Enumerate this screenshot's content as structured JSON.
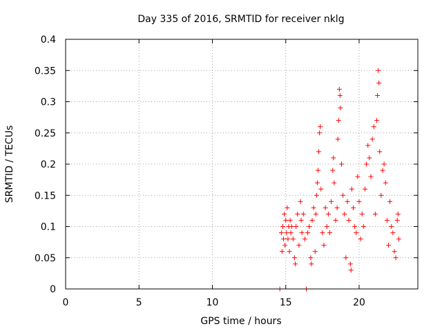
{
  "chart_data": {
    "type": "scatter",
    "title": "Day 335 of 2016, SRMTID for receiver nklg",
    "xlabel": "GPS time / hours",
    "ylabel": "SRMTID / TECUs",
    "xlim": [
      0,
      24
    ],
    "ylim": [
      0,
      0.4
    ],
    "xticks": [
      0,
      5,
      10,
      15,
      20
    ],
    "yticks": [
      0,
      0.05,
      0.1,
      0.15,
      0.2,
      0.25,
      0.3,
      0.35,
      0.4
    ],
    "xtick_labels": [
      "0",
      "5",
      "10",
      "15",
      "20"
    ],
    "ytick_labels": [
      "0",
      "0.05",
      "0.1",
      "0.15",
      "0.2",
      "0.25",
      "0.3",
      "0.35",
      "0.4"
    ],
    "grid": true,
    "marker": "+",
    "series": [
      {
        "name": "SRMTID",
        "color": "#ff0000",
        "points": [
          [
            14.6,
            0.0
          ],
          [
            16.4,
            0.0
          ],
          [
            14.7,
            0.09
          ],
          [
            14.75,
            0.06
          ],
          [
            14.8,
            0.1
          ],
          [
            14.85,
            0.08
          ],
          [
            14.9,
            0.12
          ],
          [
            14.95,
            0.07
          ],
          [
            15.0,
            0.11
          ],
          [
            15.05,
            0.09
          ],
          [
            15.1,
            0.13
          ],
          [
            15.15,
            0.08
          ],
          [
            15.2,
            0.1
          ],
          [
            15.25,
            0.06
          ],
          [
            15.3,
            0.11
          ],
          [
            15.35,
            0.09
          ],
          [
            15.4,
            0.1
          ],
          [
            15.5,
            0.08
          ],
          [
            15.6,
            0.05
          ],
          [
            15.65,
            0.04
          ],
          [
            15.7,
            0.1
          ],
          [
            15.8,
            0.12
          ],
          [
            15.9,
            0.07
          ],
          [
            16.0,
            0.14
          ],
          [
            16.05,
            0.11
          ],
          [
            16.1,
            0.09
          ],
          [
            16.2,
            0.12
          ],
          [
            16.3,
            0.08
          ],
          [
            16.5,
            0.09
          ],
          [
            16.6,
            0.1
          ],
          [
            16.7,
            0.05
          ],
          [
            16.75,
            0.04
          ],
          [
            16.8,
            0.11
          ],
          [
            16.9,
            0.13
          ],
          [
            17.0,
            0.06
          ],
          [
            17.05,
            0.12
          ],
          [
            17.1,
            0.15
          ],
          [
            17.15,
            0.17
          ],
          [
            17.2,
            0.19
          ],
          [
            17.25,
            0.22
          ],
          [
            17.3,
            0.25
          ],
          [
            17.35,
            0.26
          ],
          [
            17.4,
            0.16
          ],
          [
            17.5,
            0.09
          ],
          [
            17.6,
            0.07
          ],
          [
            17.7,
            0.13
          ],
          [
            17.8,
            0.1
          ],
          [
            17.9,
            0.12
          ],
          [
            18.0,
            0.09
          ],
          [
            18.1,
            0.14
          ],
          [
            18.2,
            0.19
          ],
          [
            18.25,
            0.21
          ],
          [
            18.3,
            0.17
          ],
          [
            18.4,
            0.11
          ],
          [
            18.5,
            0.13
          ],
          [
            18.55,
            0.24
          ],
          [
            18.6,
            0.27
          ],
          [
            18.65,
            0.32
          ],
          [
            18.7,
            0.31
          ],
          [
            18.72,
            0.29
          ],
          [
            18.8,
            0.2
          ],
          [
            18.9,
            0.15
          ],
          [
            19.0,
            0.12
          ],
          [
            19.1,
            0.05
          ],
          [
            19.2,
            0.14
          ],
          [
            19.3,
            0.11
          ],
          [
            19.4,
            0.04
          ],
          [
            19.45,
            0.03
          ],
          [
            19.5,
            0.16
          ],
          [
            19.6,
            0.13
          ],
          [
            19.7,
            0.1
          ],
          [
            19.8,
            0.09
          ],
          [
            19.9,
            0.18
          ],
          [
            20.0,
            0.14
          ],
          [
            20.1,
            0.08
          ],
          [
            20.2,
            0.12
          ],
          [
            20.3,
            0.1
          ],
          [
            20.4,
            0.16
          ],
          [
            20.5,
            0.2
          ],
          [
            20.6,
            0.23
          ],
          [
            20.7,
            0.21
          ],
          [
            20.8,
            0.18
          ],
          [
            20.9,
            0.24
          ],
          [
            21.0,
            0.26
          ],
          [
            21.1,
            0.12
          ],
          [
            21.2,
            0.27
          ],
          [
            21.25,
            0.31
          ],
          [
            21.3,
            0.35
          ],
          [
            21.35,
            0.33
          ],
          [
            21.4,
            0.22
          ],
          [
            21.5,
            0.15
          ],
          [
            21.6,
            0.19
          ],
          [
            21.7,
            0.2
          ],
          [
            21.8,
            0.17
          ],
          [
            21.9,
            0.11
          ],
          [
            22.0,
            0.07
          ],
          [
            22.1,
            0.14
          ],
          [
            22.2,
            0.1
          ],
          [
            22.3,
            0.09
          ],
          [
            22.4,
            0.06
          ],
          [
            22.5,
            0.05
          ],
          [
            22.6,
            0.11
          ],
          [
            22.65,
            0.12
          ],
          [
            22.7,
            0.08
          ]
        ]
      }
    ]
  }
}
